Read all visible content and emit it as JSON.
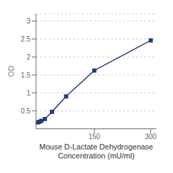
{
  "chart_data": {
    "type": "line",
    "xlabel": "Mouse D-Lactate Dehydrogenase\nConcentration (mU/ml)",
    "ylabel": "OD",
    "x": [
      0,
      4.69,
      9.38,
      18.75,
      37.5,
      75,
      150,
      300
    ],
    "values": [
      0.175,
      0.195,
      0.22,
      0.27,
      0.47,
      0.9,
      1.62,
      2.46
    ],
    "xlim": [
      -5,
      315
    ],
    "ylim": [
      0,
      3.2
    ],
    "xticks": [
      150,
      300
    ],
    "yticks": [
      0.5,
      1,
      1.5,
      2,
      2.5,
      3
    ],
    "grid": true,
    "marker": "square",
    "color": "#1f3d7a"
  }
}
